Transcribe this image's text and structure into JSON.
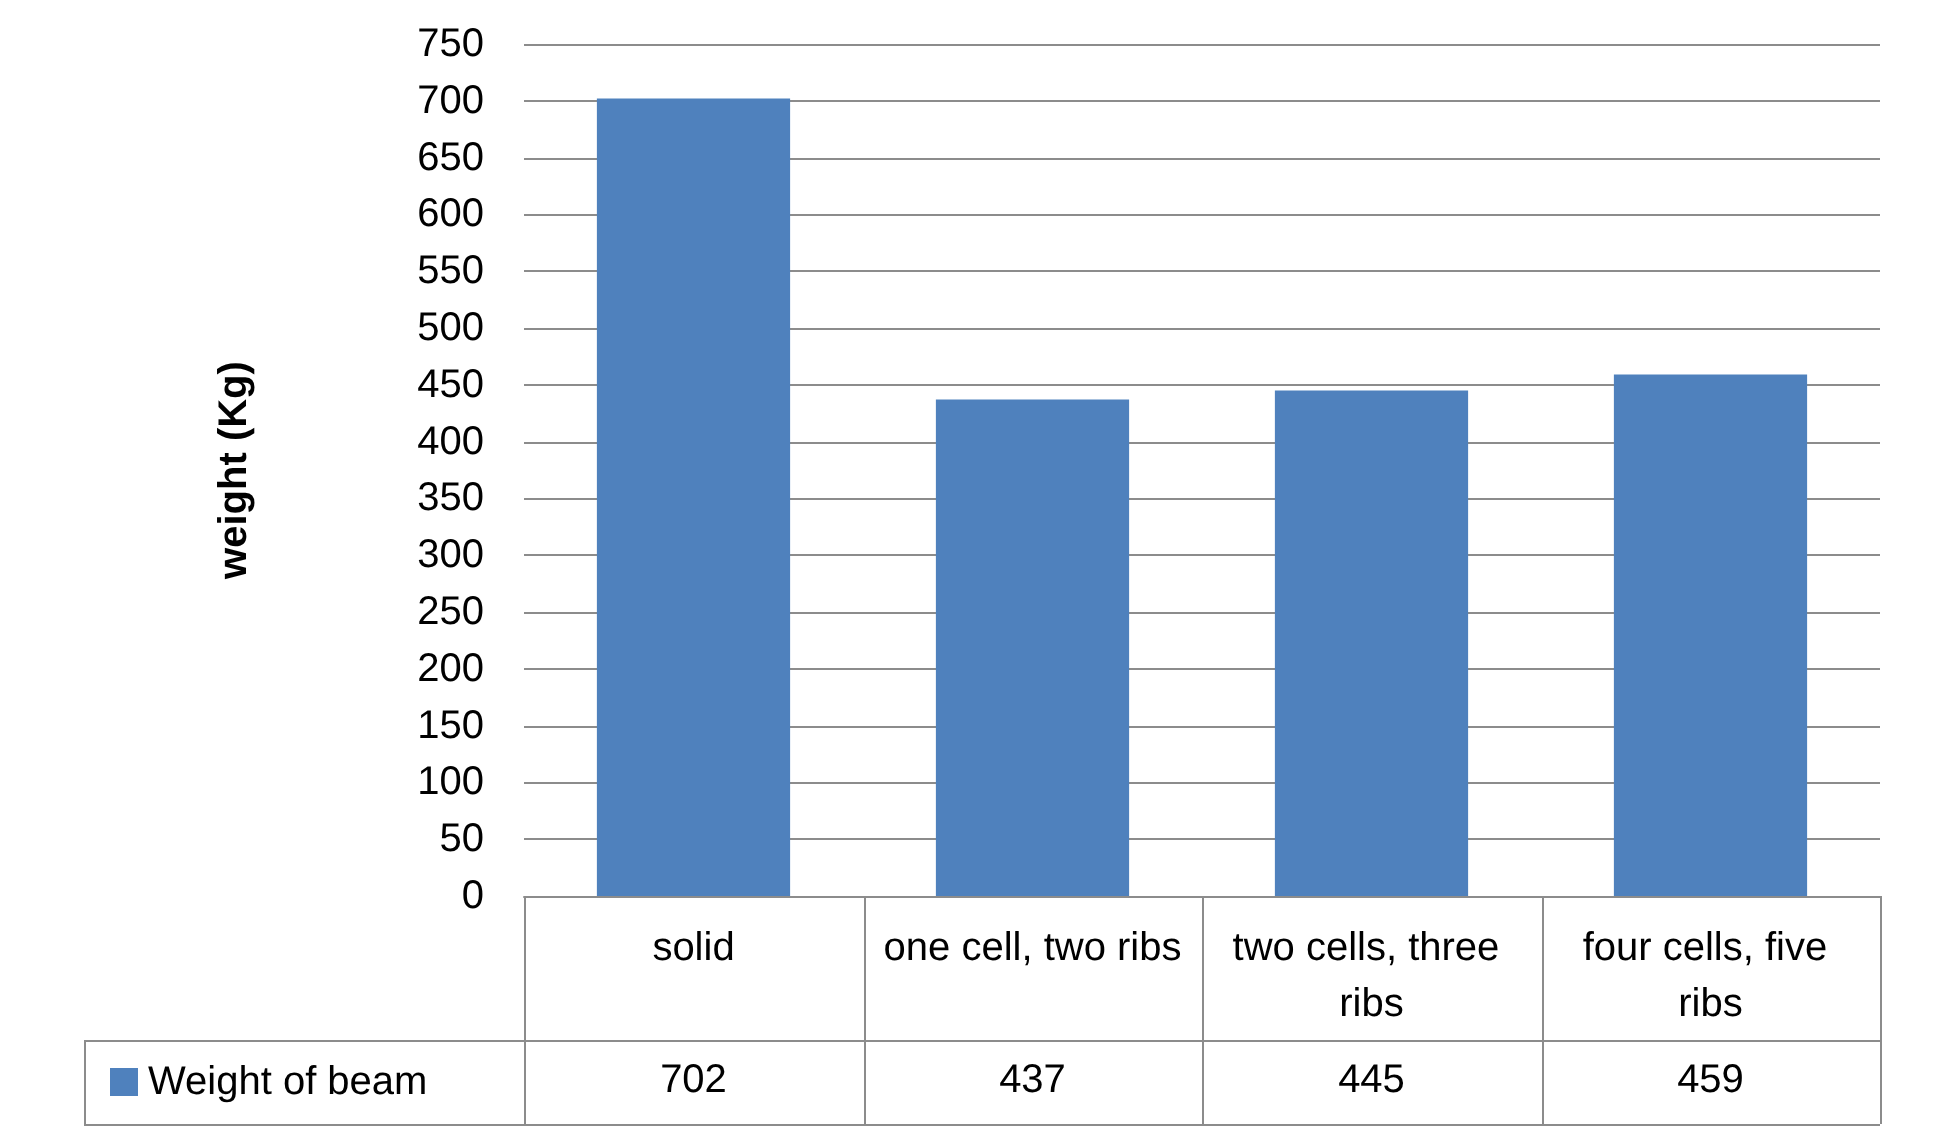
{
  "chart_data": {
    "type": "bar",
    "ylabel": "weight (Kg)",
    "categories": [
      "solid",
      "one cell, two ribs",
      "two cells, three ribs",
      "four cells, five ribs"
    ],
    "series": [
      {
        "name": "Weight of beam",
        "color": "#4f81bd",
        "values": [
          702,
          437,
          445,
          459
        ]
      }
    ],
    "ylim": [
      0,
      750
    ],
    "yticks": [
      0,
      50,
      100,
      150,
      200,
      250,
      300,
      350,
      400,
      450,
      500,
      550,
      600,
      650,
      700,
      750
    ],
    "grid": "y",
    "legend": "bottom left",
    "data_labels": true
  }
}
